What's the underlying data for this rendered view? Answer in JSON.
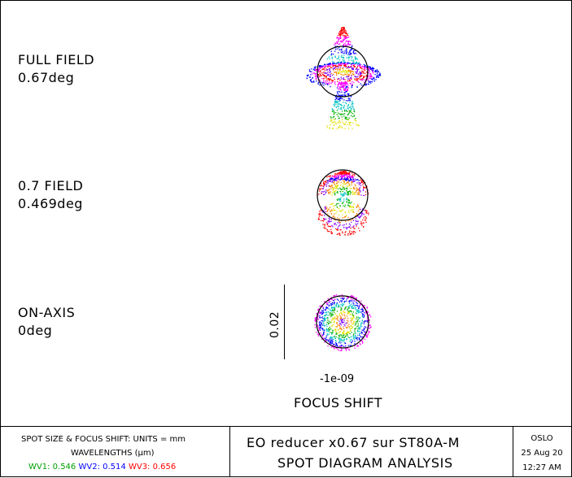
{
  "fields": [
    {
      "line1": "FULL FIELD",
      "line2": "0.67deg"
    },
    {
      "line1": "0.7 FIELD",
      "line2": "0.469deg"
    },
    {
      "line1": "ON-AXIS",
      "line2": "0deg"
    }
  ],
  "scale": {
    "label": "0.02"
  },
  "focus": {
    "value": "-1e-09",
    "title": "FOCUS SHIFT"
  },
  "footer": {
    "units": "SPOT SIZE & FOCUS SHIFT: UNITS = mm",
    "wavelengths_label": "WAVELENGTHS (μm)",
    "wavelengths": [
      {
        "label": "WV1:",
        "value": "0.546",
        "color": "#00a000"
      },
      {
        "label": "WV2:",
        "value": "0.514",
        "color": "#0000ff"
      },
      {
        "label": "WV3:",
        "value": "0.656",
        "color": "#ff0000"
      }
    ],
    "title": "EO reducer x0.67 sur ST80A-M",
    "subtitle": "SPOT DIAGRAM ANALYSIS",
    "program": "OSLO",
    "date": "25 Aug 20",
    "time": "12:27 AM"
  }
}
